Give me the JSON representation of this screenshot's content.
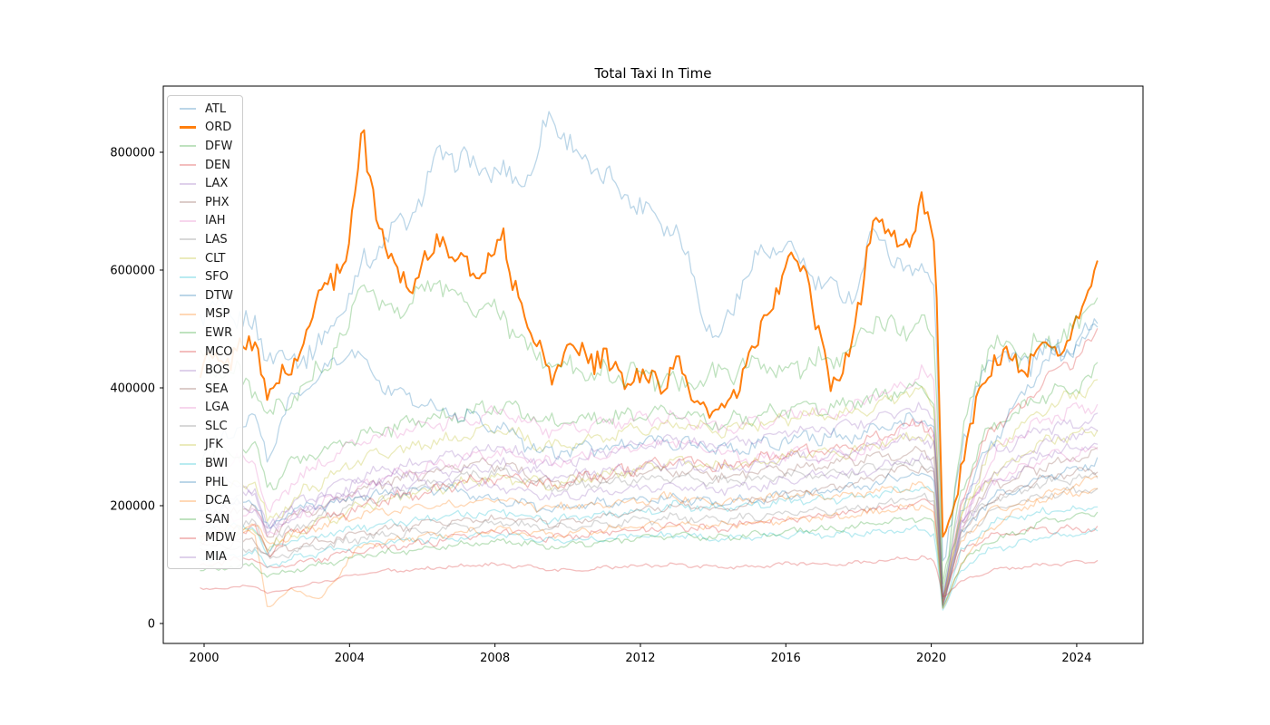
{
  "figure_title": "Total Taxi In Time",
  "chart_data": {
    "type": "line",
    "title": "Total Taxi In Time",
    "xlabel": "",
    "ylabel": "",
    "x_ticks": [
      2000,
      2004,
      2008,
      2012,
      2016,
      2020,
      2024
    ],
    "y_ticks": [
      0,
      200000,
      400000,
      600000,
      800000
    ],
    "ylim": [
      0,
      912000
    ],
    "xlim_years": [
      1998.9,
      2025.8
    ],
    "data_start_year": 1999.9,
    "data_end_year": 2024.6,
    "sampling": "monthly",
    "grid": false,
    "legend_position": "upper left",
    "highlighted_series": "ORD",
    "values_unit_note": "values_k are approximate monthly totals in thousands at the anchor_years",
    "anchor_years": [
      1999.9,
      2000.6,
      2001.4,
      2001.75,
      2002.4,
      2003.2,
      2004.0,
      2004.35,
      2005.0,
      2005.8,
      2006.5,
      2007.3,
      2008.2,
      2009.0,
      2009.5,
      2010.3,
      2011.2,
      2012.0,
      2013.0,
      2014.1,
      2015.0,
      2015.8,
      2016.5,
      2017.2,
      2018.0,
      2018.5,
      2019.2,
      2019.75,
      2020.1,
      2020.32,
      2020.8,
      2021.6,
      2022.4,
      2023.2,
      2024.0,
      2024.6
    ],
    "series": [
      {
        "name": "ATL",
        "color": "#1f77b4",
        "alpha": 0.3,
        "width": 1.3,
        "noise_k": 28,
        "values_k": [
          520,
          530,
          500,
          460,
          450,
          470,
          560,
          610,
          650,
          700,
          800,
          780,
          760,
          760,
          870,
          790,
          750,
          710,
          670,
          470,
          610,
          640,
          610,
          560,
          570,
          680,
          590,
          620,
          560,
          80,
          290,
          470,
          440,
          460,
          470,
          520
        ]
      },
      {
        "name": "ORD",
        "color": "#ff7f0e",
        "alpha": 1.0,
        "width": 2.0,
        "noise_k": 30,
        "values_k": [
          430,
          450,
          480,
          390,
          430,
          560,
          640,
          840,
          620,
          580,
          660,
          590,
          650,
          490,
          430,
          470,
          430,
          410,
          430,
          340,
          440,
          580,
          620,
          390,
          520,
          720,
          610,
          735,
          640,
          120,
          260,
          450,
          440,
          460,
          500,
          630
        ]
      },
      {
        "name": "DFW",
        "color": "#2ca02c",
        "alpha": 0.3,
        "width": 1.3,
        "noise_k": 26,
        "values_k": [
          450,
          430,
          400,
          340,
          380,
          430,
          500,
          590,
          520,
          560,
          580,
          540,
          520,
          460,
          440,
          430,
          420,
          430,
          400,
          420,
          440,
          430,
          440,
          450,
          480,
          520,
          490,
          520,
          480,
          60,
          300,
          480,
          460,
          480,
          500,
          555
        ]
      },
      {
        "name": "DEN",
        "color": "#d62728",
        "alpha": 0.3,
        "width": 1.3,
        "noise_k": 8,
        "values_k": [
          100,
          105,
          110,
          95,
          100,
          110,
          120,
          125,
          130,
          135,
          140,
          150,
          160,
          150,
          145,
          150,
          155,
          160,
          165,
          160,
          170,
          175,
          180,
          185,
          190,
          195,
          200,
          205,
          195,
          45,
          120,
          150,
          155,
          160,
          160,
          165
        ]
      },
      {
        "name": "LAX",
        "color": "#9467bd",
        "alpha": 0.3,
        "width": 1.3,
        "noise_k": 13,
        "values_k": [
          230,
          240,
          230,
          160,
          200,
          220,
          240,
          250,
          260,
          270,
          280,
          290,
          300,
          280,
          270,
          280,
          290,
          300,
          310,
          300,
          310,
          320,
          330,
          330,
          340,
          350,
          360,
          365,
          350,
          40,
          200,
          290,
          310,
          330,
          340,
          355
        ]
      },
      {
        "name": "PHX",
        "color": "#8c564b",
        "alpha": 0.3,
        "width": 1.3,
        "noise_k": 12,
        "values_k": [
          180,
          190,
          195,
          150,
          180,
          200,
          220,
          230,
          240,
          250,
          260,
          270,
          270,
          250,
          240,
          245,
          250,
          255,
          260,
          250,
          255,
          260,
          265,
          270,
          280,
          285,
          290,
          295,
          280,
          30,
          170,
          230,
          250,
          270,
          280,
          290
        ]
      },
      {
        "name": "IAH",
        "color": "#e377c2",
        "alpha": 0.3,
        "width": 1.3,
        "noise_k": 13,
        "values_k": [
          170,
          180,
          190,
          150,
          180,
          200,
          220,
          230,
          250,
          260,
          270,
          280,
          290,
          280,
          270,
          280,
          290,
          300,
          310,
          290,
          280,
          285,
          290,
          280,
          290,
          300,
          330,
          340,
          320,
          35,
          180,
          240,
          260,
          280,
          290,
          300
        ]
      },
      {
        "name": "LAS",
        "color": "#7f7f7f",
        "alpha": 0.3,
        "width": 1.3,
        "noise_k": 11,
        "values_k": [
          150,
          160,
          170,
          130,
          160,
          180,
          200,
          210,
          220,
          230,
          240,
          250,
          260,
          240,
          230,
          235,
          240,
          245,
          250,
          240,
          245,
          250,
          255,
          255,
          260,
          265,
          270,
          275,
          265,
          30,
          160,
          210,
          225,
          240,
          245,
          250
        ]
      },
      {
        "name": "CLT",
        "color": "#bcbd22",
        "alpha": 0.3,
        "width": 1.3,
        "noise_k": 12,
        "values_k": [
          140,
          150,
          160,
          130,
          150,
          170,
          190,
          200,
          210,
          220,
          230,
          240,
          250,
          240,
          235,
          245,
          255,
          265,
          275,
          265,
          270,
          280,
          290,
          285,
          295,
          305,
          315,
          320,
          305,
          35,
          180,
          250,
          280,
          310,
          320,
          330
        ]
      },
      {
        "name": "SFO",
        "color": "#17becf",
        "alpha": 0.3,
        "width": 1.3,
        "noise_k": 9,
        "values_k": [
          160,
          165,
          160,
          120,
          140,
          150,
          160,
          165,
          170,
          175,
          180,
          185,
          190,
          180,
          175,
          180,
          185,
          190,
          200,
          195,
          200,
          205,
          210,
          210,
          215,
          220,
          225,
          230,
          215,
          25,
          120,
          170,
          180,
          190,
          195,
          200
        ]
      },
      {
        "name": "DTW",
        "color": "#1f77b4",
        "alpha": 0.3,
        "width": 1.3,
        "noise_k": 11,
        "values_k": [
          190,
          200,
          210,
          160,
          190,
          200,
          210,
          215,
          220,
          225,
          230,
          220,
          210,
          200,
          195,
          200,
          205,
          210,
          215,
          205,
          210,
          215,
          220,
          225,
          230,
          240,
          250,
          255,
          245,
          30,
          150,
          210,
          230,
          250,
          260,
          280
        ]
      },
      {
        "name": "MSP",
        "color": "#ff7f0e",
        "alpha": 0.3,
        "width": 1.3,
        "noise_k": 10,
        "values_k": [
          150,
          160,
          170,
          130,
          150,
          165,
          180,
          185,
          190,
          195,
          200,
          205,
          210,
          200,
          195,
          200,
          205,
          210,
          215,
          205,
          210,
          215,
          220,
          215,
          220,
          225,
          230,
          235,
          225,
          28,
          140,
          190,
          200,
          215,
          220,
          230
        ]
      },
      {
        "name": "EWR",
        "color": "#2ca02c",
        "alpha": 0.3,
        "width": 1.3,
        "noise_k": 16,
        "values_k": [
          280,
          290,
          300,
          230,
          270,
          290,
          310,
          320,
          330,
          340,
          350,
          360,
          370,
          350,
          340,
          345,
          350,
          355,
          360,
          340,
          350,
          360,
          370,
          365,
          375,
          385,
          395,
          400,
          380,
          45,
          230,
          330,
          360,
          390,
          400,
          430
        ]
      },
      {
        "name": "MCO",
        "color": "#d62728",
        "alpha": 0.3,
        "width": 1.3,
        "noise_k": 13,
        "values_k": [
          140,
          150,
          160,
          120,
          150,
          170,
          190,
          200,
          210,
          220,
          230,
          240,
          250,
          240,
          235,
          245,
          255,
          265,
          275,
          265,
          275,
          285,
          295,
          295,
          305,
          315,
          330,
          340,
          325,
          35,
          200,
          330,
          360,
          420,
          450,
          495
        ]
      },
      {
        "name": "BOS",
        "color": "#9467bd",
        "alpha": 0.3,
        "width": 1.3,
        "noise_k": 12,
        "values_k": [
          200,
          210,
          220,
          160,
          190,
          210,
          230,
          240,
          250,
          255,
          260,
          265,
          270,
          260,
          250,
          255,
          260,
          265,
          270,
          260,
          265,
          275,
          285,
          285,
          290,
          300,
          310,
          315,
          300,
          30,
          170,
          250,
          280,
          310,
          320,
          330
        ]
      },
      {
        "name": "SEA",
        "color": "#8c564b",
        "alpha": 0.3,
        "width": 1.3,
        "noise_k": 9,
        "values_k": [
          130,
          135,
          140,
          115,
          130,
          140,
          150,
          155,
          160,
          165,
          170,
          175,
          180,
          175,
          170,
          175,
          180,
          190,
          200,
          195,
          205,
          215,
          225,
          230,
          240,
          250,
          260,
          265,
          255,
          30,
          150,
          210,
          230,
          250,
          255,
          260
        ]
      },
      {
        "name": "LGA",
        "color": "#e377c2",
        "alpha": 0.3,
        "width": 1.3,
        "noise_k": 15,
        "values_k": [
          260,
          270,
          280,
          180,
          240,
          270,
          300,
          310,
          320,
          330,
          340,
          350,
          360,
          340,
          330,
          335,
          340,
          345,
          350,
          330,
          340,
          350,
          360,
          355,
          370,
          390,
          400,
          430,
          400,
          25,
          150,
          280,
          320,
          350,
          360,
          370
        ]
      },
      {
        "name": "SLC",
        "color": "#7f7f7f",
        "alpha": 0.3,
        "width": 1.3,
        "noise_k": 9,
        "values_k": [
          120,
          125,
          130,
          110,
          120,
          130,
          140,
          145,
          150,
          155,
          160,
          165,
          170,
          165,
          160,
          165,
          170,
          175,
          180,
          175,
          180,
          185,
          190,
          190,
          195,
          200,
          210,
          215,
          205,
          30,
          140,
          190,
          205,
          220,
          225,
          230
        ]
      },
      {
        "name": "JFK",
        "color": "#bcbd22",
        "alpha": 0.3,
        "width": 1.3,
        "noise_k": 14,
        "values_k": [
          220,
          230,
          240,
          170,
          210,
          240,
          270,
          280,
          290,
          300,
          310,
          320,
          330,
          310,
          300,
          310,
          320,
          330,
          340,
          325,
          335,
          345,
          355,
          350,
          360,
          370,
          390,
          400,
          370,
          30,
          180,
          290,
          330,
          370,
          390,
          410
        ]
      },
      {
        "name": "BWI",
        "color": "#17becf",
        "alpha": 0.3,
        "width": 1.3,
        "noise_k": 7,
        "values_k": [
          110,
          115,
          120,
          95,
          110,
          120,
          130,
          135,
          140,
          142,
          145,
          148,
          150,
          145,
          140,
          142,
          145,
          148,
          150,
          145,
          147,
          150,
          152,
          150,
          152,
          155,
          158,
          160,
          152,
          20,
          90,
          125,
          135,
          148,
          150,
          155
        ]
      },
      {
        "name": "PHL",
        "color": "#1f77b4",
        "alpha": 0.3,
        "width": 1.3,
        "noise_k": 16,
        "values_k": [
          280,
          320,
          350,
          280,
          380,
          420,
          470,
          440,
          400,
          380,
          360,
          350,
          330,
          300,
          290,
          295,
          300,
          305,
          310,
          295,
          300,
          310,
          320,
          315,
          320,
          330,
          340,
          345,
          330,
          35,
          190,
          300,
          380,
          450,
          470,
          500
        ]
      },
      {
        "name": "DCA",
        "color": "#ff7f0e",
        "alpha": 0.3,
        "width": 1.3,
        "noise_k": 8,
        "values_k": [
          150,
          155,
          150,
          25,
          60,
          40,
          110,
          130,
          140,
          145,
          150,
          155,
          160,
          155,
          150,
          155,
          160,
          165,
          170,
          165,
          170,
          175,
          180,
          180,
          185,
          190,
          195,
          200,
          190,
          22,
          100,
          160,
          190,
          220,
          235,
          250
        ]
      },
      {
        "name": "SAN",
        "color": "#2ca02c",
        "alpha": 0.3,
        "width": 1.3,
        "noise_k": 7,
        "values_k": [
          90,
          95,
          100,
          80,
          90,
          100,
          110,
          115,
          120,
          125,
          130,
          135,
          140,
          135,
          130,
          135,
          140,
          145,
          150,
          145,
          150,
          155,
          160,
          160,
          165,
          170,
          175,
          180,
          170,
          25,
          100,
          140,
          155,
          175,
          180,
          190
        ]
      },
      {
        "name": "MDW",
        "color": "#d62728",
        "alpha": 0.3,
        "width": 1.3,
        "noise_k": 5,
        "values_k": [
          58,
          60,
          65,
          50,
          60,
          70,
          80,
          85,
          90,
          92,
          95,
          98,
          100,
          95,
          90,
          92,
          95,
          98,
          100,
          95,
          97,
          100,
          103,
          100,
          103,
          106,
          110,
          112,
          105,
          45,
          70,
          90,
          95,
          100,
          103,
          107
        ]
      },
      {
        "name": "MIA",
        "color": "#9467bd",
        "alpha": 0.3,
        "width": 1.3,
        "noise_k": 11,
        "values_k": [
          190,
          195,
          200,
          150,
          180,
          200,
          220,
          225,
          230,
          235,
          240,
          235,
          230,
          220,
          215,
          220,
          225,
          230,
          235,
          225,
          230,
          240,
          250,
          250,
          255,
          265,
          275,
          280,
          265,
          30,
          160,
          230,
          260,
          290,
          300,
          310
        ]
      }
    ]
  }
}
